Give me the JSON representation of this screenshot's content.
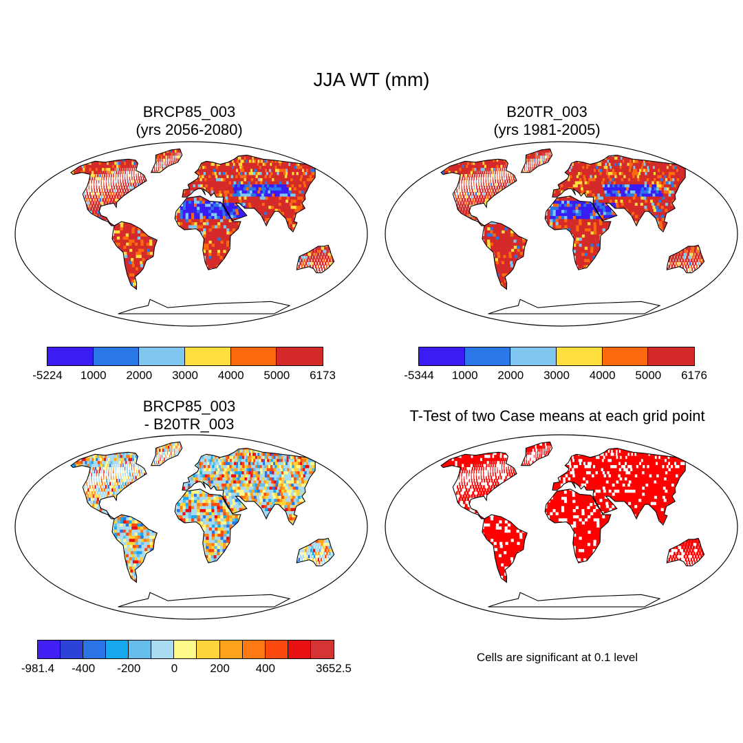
{
  "title": "JJA WT (mm)",
  "panels": [
    {
      "id": "p1",
      "title_line1": "BRCP85_003",
      "title_line2": "(yrs 2056-2080)",
      "scheme": "abs"
    },
    {
      "id": "p2",
      "title_line1": "B20TR_003",
      "title_line2": "(yrs 1981-2005)",
      "scheme": "abs"
    },
    {
      "id": "p3",
      "title_line1": "BRCP85_003",
      "title_line2": "- B20TR_003",
      "scheme": "diff"
    },
    {
      "id": "p4",
      "title_line1": "T-Test of two Case means at each grid point",
      "title_line2": "",
      "scheme": "sig"
    }
  ],
  "colorbars": {
    "cb1": {
      "colors": [
        "#3b1cf5",
        "#2a78e8",
        "#7fc6f0",
        "#ffdf3e",
        "#fb6a0e",
        "#d42a2a"
      ],
      "labels": [
        "-5224",
        "1000",
        "2000",
        "3000",
        "4000",
        "5000",
        "6173"
      ]
    },
    "cb2": {
      "colors": [
        "#3b1cf5",
        "#2a78e8",
        "#7fc6f0",
        "#ffdf3e",
        "#fb6a0e",
        "#d42a2a"
      ],
      "labels": [
        "-5344",
        "1000",
        "2000",
        "3000",
        "4000",
        "5000",
        "6176"
      ]
    },
    "cb3": {
      "colors": [
        "#4020f5",
        "#2d43d8",
        "#2b74e6",
        "#18a8f0",
        "#67bdea",
        "#a8daf2",
        "#fffa8a",
        "#ffd33a",
        "#ffa31e",
        "#ff7a12",
        "#fc4a0e",
        "#e81010",
        "#d43434"
      ],
      "labels": [
        "-981.4",
        "-400",
        "-200",
        "0",
        "200",
        "400",
        "3652.5"
      ],
      "label_after_box": [
        0,
        2,
        4,
        6,
        8,
        10,
        13
      ]
    }
  },
  "significance_note": "Cells are significant at 0.1 level",
  "significance_color": "#ff0000",
  "ocean_color": "#ffffff"
}
